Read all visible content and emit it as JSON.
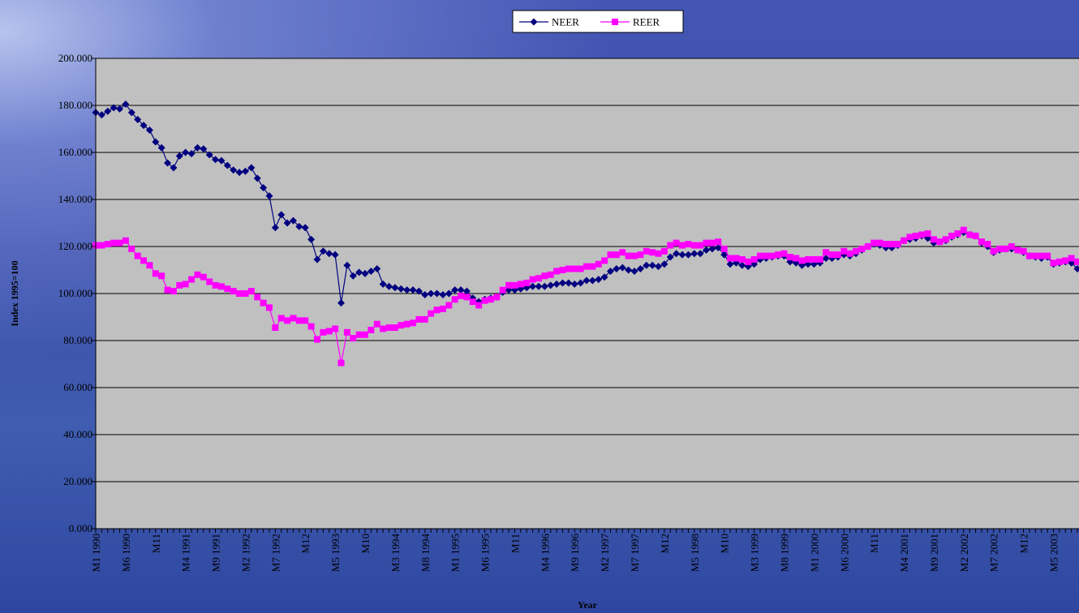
{
  "chart_data": {
    "type": "line",
    "xlabel": "Year",
    "ylabel": "Index 1995=100",
    "ylim": [
      0,
      200
    ],
    "yticks": [
      {
        "value": 0,
        "label": "0.000"
      },
      {
        "value": 20,
        "label": "20.000"
      },
      {
        "value": 40,
        "label": "40.000"
      },
      {
        "value": 60,
        "label": "60.000"
      },
      {
        "value": 80,
        "label": "80.000"
      },
      {
        "value": 100,
        "label": "100.000"
      },
      {
        "value": 120,
        "label": "120.000"
      },
      {
        "value": 140,
        "label": "140.000"
      },
      {
        "value": 160,
        "label": "160.000"
      },
      {
        "value": 180,
        "label": "180.000"
      },
      {
        "value": 200,
        "label": "200.000"
      }
    ],
    "grid": true,
    "legend": "top",
    "categories": [
      "M1 1990",
      null,
      null,
      null,
      null,
      "M6 1990",
      null,
      null,
      null,
      null,
      "M11",
      null,
      null,
      null,
      null,
      "M4 1991",
      null,
      null,
      null,
      null,
      "M9 1991",
      null,
      null,
      null,
      null,
      "M2 1992",
      null,
      null,
      null,
      null,
      "M7 1992",
      null,
      null,
      null,
      null,
      "M12",
      null,
      null,
      null,
      null,
      "M5 1993",
      null,
      null,
      null,
      null,
      "M10",
      null,
      null,
      null,
      null,
      "M3 1994",
      null,
      null,
      null,
      null,
      "M8 1994",
      null,
      null,
      null,
      null,
      "M1 1995",
      null,
      null,
      null,
      null,
      "M6 1995",
      null,
      null,
      null,
      null,
      "M11",
      null,
      null,
      null,
      null,
      "M4 1996",
      null,
      null,
      null,
      null,
      "M9 1996",
      null,
      null,
      null,
      null,
      "M2 1997",
      null,
      null,
      null,
      null,
      "M7 1997",
      null,
      null,
      null,
      null,
      "M12",
      null,
      null,
      null,
      null,
      "M5 1998",
      null,
      null,
      null,
      null,
      "M10",
      null,
      null,
      null,
      null,
      "M3 1999",
      null,
      null,
      null,
      null,
      "M8 1999",
      null,
      null,
      null,
      null,
      "M1 2000",
      null,
      null,
      null,
      null,
      "M6 2000",
      null,
      null,
      null,
      null,
      "M11",
      null,
      null,
      null,
      null,
      "M4 2001",
      null,
      null,
      null,
      null,
      "M9 2001",
      null,
      null,
      null,
      null,
      "M2 2002",
      null,
      null,
      null,
      null,
      "M7 2002",
      null,
      null,
      null,
      null,
      "M12",
      null,
      null,
      null,
      null,
      "M5 2003",
      null,
      null,
      null,
      null
    ],
    "series": [
      {
        "name": "NEER",
        "color": "#000080",
        "marker": "diamond",
        "values": [
          177,
          176,
          177.5,
          179,
          178.5,
          180.5,
          177,
          174,
          171.5,
          169.5,
          164.5,
          162,
          155.5,
          153.5,
          158.5,
          160,
          159.5,
          162,
          161.5,
          159,
          157,
          156.5,
          154.5,
          152.5,
          151.5,
          152,
          153.5,
          149,
          145,
          141.5,
          128,
          133.5,
          130,
          131,
          128.5,
          128,
          123,
          114.5,
          118,
          117,
          116.5,
          96,
          112,
          107.5,
          109,
          108.5,
          109.5,
          110.5,
          104,
          103,
          102.5,
          102,
          101.5,
          101.5,
          101,
          99.5,
          100,
          100,
          99.5,
          100,
          101.5,
          101.5,
          101,
          98,
          96.5,
          97.5,
          98,
          98.5,
          100.5,
          101.5,
          101.5,
          102,
          102.5,
          103,
          103,
          103,
          103.5,
          104,
          104.5,
          104.5,
          104,
          104.5,
          105.5,
          105.5,
          106,
          107,
          109.5,
          110.5,
          111,
          110,
          109.5,
          110.5,
          112,
          112,
          111.5,
          112.5,
          115.5,
          117,
          116.5,
          116.5,
          117,
          117,
          118.5,
          119,
          119.5,
          116.5,
          112.5,
          113,
          112,
          111.5,
          112.5,
          114.5,
          115,
          115.5,
          116,
          116,
          113.5,
          113,
          112,
          112.5,
          112.5,
          113,
          115,
          115,
          115.5,
          116.5,
          116,
          117,
          118.5,
          120,
          121,
          120.5,
          119.5,
          119.5,
          120.5,
          122.5,
          123,
          123.5,
          124.5,
          123.5,
          121.5,
          122,
          122.5,
          124,
          125,
          126,
          125,
          124.5,
          121.5,
          120,
          117.5,
          118.5,
          119,
          119,
          118.5,
          117.5,
          116,
          115.5,
          115,
          115.5,
          112.5,
          113,
          113.5,
          113,
          110.5
        ]
      },
      {
        "name": "REER",
        "color": "#ff00ff",
        "marker": "square",
        "values": [
          120.5,
          120.5,
          121,
          121.5,
          121.5,
          122.5,
          119,
          116,
          114,
          112,
          108.5,
          107.5,
          101.5,
          101,
          103.5,
          104,
          106,
          108,
          107,
          105,
          103.5,
          103,
          102,
          101,
          100,
          100,
          101,
          98.5,
          96,
          94,
          85.5,
          89.5,
          88.5,
          89.5,
          88.5,
          88.5,
          86,
          80.5,
          83.5,
          84,
          85,
          70.5,
          83.5,
          81,
          82.5,
          82.5,
          84.5,
          87,
          85,
          85.5,
          85.5,
          86.5,
          87,
          87.5,
          89,
          89,
          91.5,
          93,
          93.5,
          95,
          97.5,
          99,
          98.5,
          96.5,
          95,
          97,
          97.5,
          98.5,
          101.5,
          103.5,
          103.5,
          104,
          104.5,
          106,
          106.5,
          107.5,
          108,
          109.5,
          110,
          110.5,
          110.5,
          110.5,
          111.5,
          111.5,
          112.5,
          114,
          116.5,
          116.5,
          117.5,
          116,
          116,
          116.5,
          118,
          117.5,
          117,
          118,
          120.5,
          121.5,
          120.5,
          121,
          120.5,
          120.5,
          121.5,
          121.5,
          122,
          119,
          115,
          115,
          114.5,
          113.5,
          114.5,
          116,
          116,
          116,
          116.5,
          117,
          115.5,
          115,
          114,
          114.5,
          114.5,
          114.5,
          117.5,
          116.5,
          116.5,
          118,
          117,
          118,
          119,
          120,
          121.5,
          121.5,
          121,
          121,
          121,
          122.5,
          124,
          124.5,
          125,
          125.5,
          123,
          122,
          123,
          124.5,
          125.5,
          127,
          125,
          124.5,
          122,
          121,
          118,
          119,
          119,
          120,
          118.5,
          118,
          116,
          116,
          116,
          116,
          113,
          113.5,
          114,
          115,
          113.5
        ]
      }
    ]
  }
}
